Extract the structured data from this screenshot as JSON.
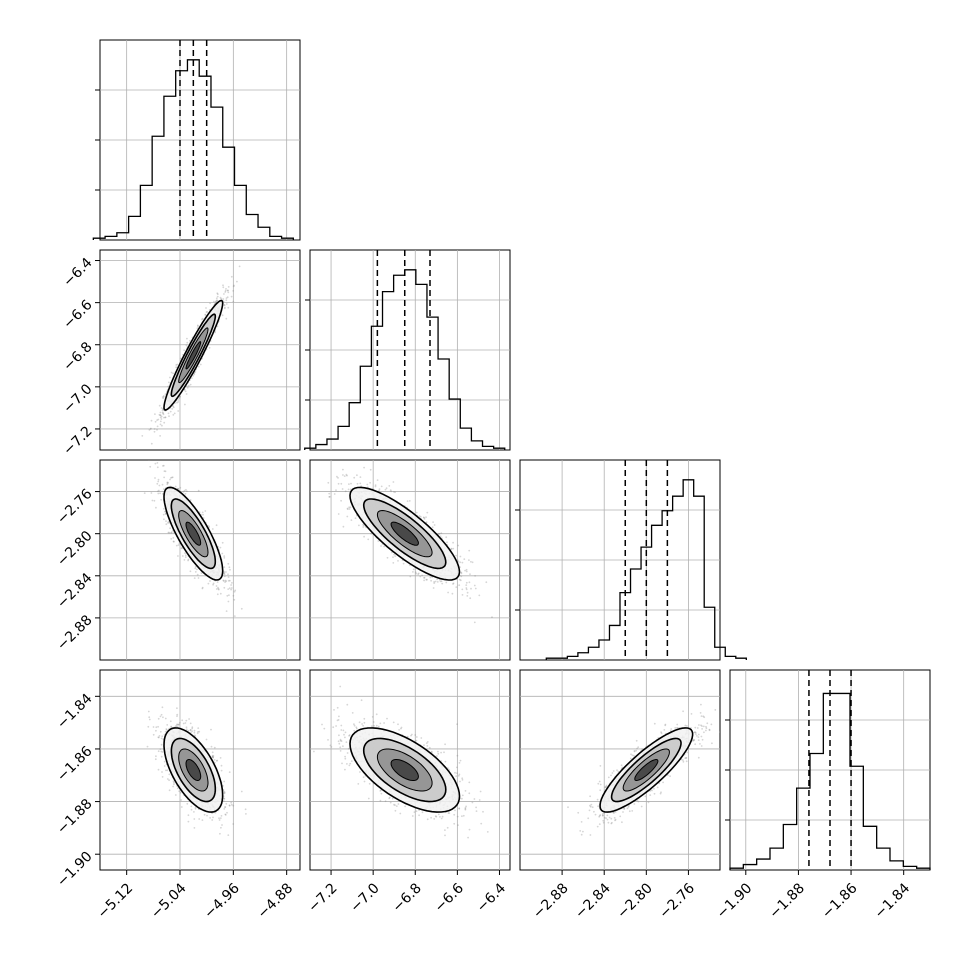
{
  "chart_data": {
    "type": "corner",
    "parameters": [
      {
        "range": [
          -5.16,
          -4.86
        ],
        "ticks": [
          -5.12,
          -5.04,
          -4.96,
          -4.88
        ],
        "tick_labels": [
          "−5.12",
          "−5.04",
          "−4.96",
          "−4.88"
        ],
        "mean": -5.02,
        "sd": 0.022,
        "quantiles": [
          -5.04,
          -5.02,
          -5.0
        ],
        "hist": [
          0.01,
          0.02,
          0.04,
          0.13,
          0.3,
          0.57,
          0.79,
          0.93,
          0.99,
          0.9,
          0.73,
          0.51,
          0.3,
          0.14,
          0.07,
          0.02,
          0.01
        ]
      },
      {
        "range": [
          -7.3,
          -6.35
        ],
        "ticks": [
          -7.2,
          -7.0,
          -6.8,
          -6.6,
          -6.4
        ],
        "tick_labels": [
          "−7.2",
          "−7.0",
          "−6.8",
          "−6.6",
          "−6.4"
        ],
        "mean": -6.85,
        "sd": 0.13,
        "quantiles": [
          -6.98,
          -6.85,
          -6.73
        ],
        "hist": [
          0.01,
          0.03,
          0.06,
          0.13,
          0.26,
          0.46,
          0.68,
          0.87,
          0.96,
          0.99,
          0.91,
          0.73,
          0.5,
          0.28,
          0.12,
          0.05,
          0.02,
          0.01
        ]
      },
      {
        "range": [
          -2.92,
          -2.73
        ],
        "ticks": [
          -2.88,
          -2.84,
          -2.8,
          -2.76
        ],
        "tick_labels": [
          "−2.88",
          "−2.84",
          "−2.80",
          "−2.76"
        ],
        "mean": -2.8,
        "sd": 0.022,
        "quantiles": [
          -2.82,
          -2.8,
          -2.78
        ],
        "hist": [
          0.01,
          0.01,
          0.02,
          0.04,
          0.07,
          0.11,
          0.19,
          0.37,
          0.5,
          0.62,
          0.74,
          0.82,
          0.9,
          0.99,
          0.9,
          0.29,
          0.07,
          0.02,
          0.01
        ]
      },
      {
        "range": [
          -1.906,
          -1.83
        ],
        "ticks": [
          -1.9,
          -1.88,
          -1.86,
          -1.84
        ],
        "tick_labels": [
          "−1.90",
          "−1.88",
          "−1.86",
          "−1.84"
        ],
        "mean": -1.868,
        "sd": 0.008,
        "quantiles": [
          -1.876,
          -1.868,
          -1.86
        ],
        "hist": [
          0.01,
          0.03,
          0.06,
          0.12,
          0.25,
          0.45,
          0.64,
          0.97,
          0.97,
          0.57,
          0.24,
          0.12,
          0.05,
          0.02,
          0.01
        ]
      }
    ],
    "scatter_pairs": [
      {
        "row": 1,
        "col": 0,
        "rho": 0.95
      },
      {
        "row": 2,
        "col": 0,
        "rho": -0.8
      },
      {
        "row": 2,
        "col": 1,
        "rho": -0.82
      },
      {
        "row": 3,
        "col": 0,
        "rho": -0.6
      },
      {
        "row": 3,
        "col": 1,
        "rho": -0.62
      },
      {
        "row": 3,
        "col": 2,
        "rho": 0.85
      }
    ],
    "grid": true,
    "colors": {
      "line": "#000000",
      "points": "#8a8a8a",
      "grid": "#b0b0b0"
    }
  }
}
